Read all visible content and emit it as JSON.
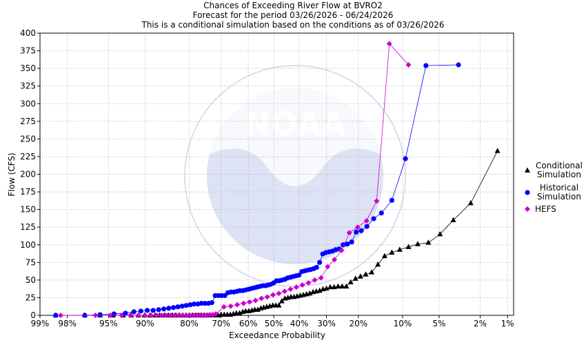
{
  "chart_data": {
    "type": "scatter",
    "title_lines": [
      "Chances of Exceeding River Flow at BVRO2",
      "Forecast for the period 03/26/2026 - 06/24/2026",
      "This is a conditional simulation based on the conditions as of 03/26/2026"
    ],
    "xlabel": "Exceedance Probability",
    "ylabel": "Flow (CFS)",
    "x_scale": "normal-probability, reversed",
    "ylim": [
      0,
      400
    ],
    "yticks": [
      0,
      25,
      50,
      75,
      100,
      125,
      150,
      175,
      200,
      225,
      250,
      275,
      300,
      325,
      350,
      375,
      400
    ],
    "xticks": [
      {
        "p": 99,
        "label": "99%"
      },
      {
        "p": 98,
        "label": "98%"
      },
      {
        "p": 95,
        "label": "95%"
      },
      {
        "p": 90,
        "label": "90%"
      },
      {
        "p": 80,
        "label": "80%"
      },
      {
        "p": 70,
        "label": "70%"
      },
      {
        "p": 60,
        "label": "60%"
      },
      {
        "p": 50,
        "label": "50%"
      },
      {
        "p": 40,
        "label": "40%"
      },
      {
        "p": 30,
        "label": "30%"
      },
      {
        "p": 20,
        "label": "20%"
      },
      {
        "p": 10,
        "label": "10%"
      },
      {
        "p": 5,
        "label": "5%"
      },
      {
        "p": 2,
        "label": "2%"
      },
      {
        "p": 1,
        "label": "1%"
      }
    ],
    "grid": true,
    "legend_position": "right",
    "watermark": "NOAA",
    "series": [
      {
        "name": "Conditional Simulation",
        "legend_lines": [
          "Conditional",
          "Simulation"
        ],
        "color": "#000000",
        "marker": "triangle",
        "points": [
          [
            98.5,
            0
          ],
          [
            97,
            0
          ],
          [
            95.8,
            0
          ],
          [
            94.5,
            0
          ],
          [
            93.3,
            0
          ],
          [
            92.2,
            0
          ],
          [
            91.1,
            0
          ],
          [
            90.1,
            0
          ],
          [
            89.1,
            0
          ],
          [
            88.1,
            0
          ],
          [
            87.2,
            0
          ],
          [
            86.2,
            0
          ],
          [
            85.3,
            0
          ],
          [
            84.4,
            0
          ],
          [
            83.5,
            0
          ],
          [
            82.6,
            0
          ],
          [
            81.7,
            0
          ],
          [
            80.9,
            0
          ],
          [
            80,
            0
          ],
          [
            79.1,
            0
          ],
          [
            78.2,
            0
          ],
          [
            77.3,
            0
          ],
          [
            76.4,
            0
          ],
          [
            75.5,
            0
          ],
          [
            74.6,
            0
          ],
          [
            73.7,
            0
          ],
          [
            72.8,
            0
          ],
          [
            71.9,
            0
          ],
          [
            71,
            0
          ],
          [
            70,
            1
          ],
          [
            68.9,
            1
          ],
          [
            67.8,
            1
          ],
          [
            66.7,
            1
          ],
          [
            65.6,
            2
          ],
          [
            64.5,
            3
          ],
          [
            63.3,
            3
          ],
          [
            62.1,
            5
          ],
          [
            61,
            6
          ],
          [
            59.8,
            6
          ],
          [
            58.6,
            7
          ],
          [
            57.5,
            8
          ],
          [
            56.3,
            8
          ],
          [
            55.1,
            10
          ],
          [
            54,
            11
          ],
          [
            52.8,
            12
          ],
          [
            51.6,
            13
          ],
          [
            50.4,
            14
          ],
          [
            49.2,
            14
          ],
          [
            48,
            14
          ],
          [
            46.8,
            20
          ],
          [
            45.6,
            24
          ],
          [
            44.4,
            25
          ],
          [
            43.2,
            26
          ],
          [
            42,
            26
          ],
          [
            40.8,
            27
          ],
          [
            39.6,
            28
          ],
          [
            38.4,
            29
          ],
          [
            37.2,
            30
          ],
          [
            36,
            31
          ],
          [
            34.8,
            33
          ],
          [
            33.6,
            34
          ],
          [
            32.4,
            35
          ],
          [
            31.2,
            37
          ],
          [
            30,
            38
          ],
          [
            28.7,
            40
          ],
          [
            27.4,
            40
          ],
          [
            26.1,
            41
          ],
          [
            24.8,
            41
          ],
          [
            23.5,
            41
          ],
          [
            22.2,
            47
          ],
          [
            20.8,
            52
          ],
          [
            19.4,
            55
          ],
          [
            18,
            58
          ],
          [
            16.5,
            61
          ],
          [
            15,
            72
          ],
          [
            13.5,
            84
          ],
          [
            12,
            89
          ],
          [
            10.5,
            93
          ],
          [
            9,
            97
          ],
          [
            7.6,
            101
          ],
          [
            6.2,
            103
          ],
          [
            4.9,
            115
          ],
          [
            3.7,
            135
          ],
          [
            2.5,
            159
          ],
          [
            1.3,
            233
          ]
        ]
      },
      {
        "name": "Historical Simulation",
        "legend_lines": [
          "Historical",
          "Simulation"
        ],
        "color": "#0000ff",
        "marker": "circle",
        "points": [
          [
            98.5,
            0
          ],
          [
            97,
            0
          ],
          [
            95.8,
            1
          ],
          [
            94.4,
            2
          ],
          [
            93,
            3
          ],
          [
            91.8,
            5
          ],
          [
            90.7,
            6
          ],
          [
            89.6,
            7
          ],
          [
            88.5,
            7
          ],
          [
            87.4,
            8
          ],
          [
            86.3,
            9
          ],
          [
            85.2,
            10
          ],
          [
            84.1,
            11
          ],
          [
            83,
            12
          ],
          [
            81.9,
            13
          ],
          [
            80.8,
            14
          ],
          [
            79.7,
            15
          ],
          [
            78.6,
            16
          ],
          [
            77.5,
            16
          ],
          [
            76.4,
            17
          ],
          [
            75.3,
            17
          ],
          [
            74.2,
            17
          ],
          [
            73.1,
            18
          ],
          [
            72,
            28
          ],
          [
            70.9,
            28
          ],
          [
            69.8,
            28
          ],
          [
            68.7,
            28
          ],
          [
            67.6,
            32
          ],
          [
            66.5,
            33
          ],
          [
            65.4,
            33
          ],
          [
            64.3,
            34
          ],
          [
            63.2,
            35
          ],
          [
            62.1,
            35
          ],
          [
            61,
            36
          ],
          [
            59.9,
            37
          ],
          [
            58.8,
            38
          ],
          [
            57.7,
            39
          ],
          [
            56.6,
            40
          ],
          [
            55.5,
            41
          ],
          [
            54.4,
            42
          ],
          [
            53.3,
            42
          ],
          [
            52.2,
            43
          ],
          [
            51.1,
            44
          ],
          [
            50,
            46
          ],
          [
            48.9,
            49
          ],
          [
            47.8,
            49
          ],
          [
            46.7,
            50
          ],
          [
            45.6,
            51
          ],
          [
            44.5,
            53
          ],
          [
            43.4,
            54
          ],
          [
            42.3,
            55
          ],
          [
            41.2,
            56
          ],
          [
            40.1,
            57
          ],
          [
            39,
            62
          ],
          [
            37.9,
            63
          ],
          [
            36.8,
            64
          ],
          [
            35.7,
            65
          ],
          [
            34.6,
            66
          ],
          [
            33.5,
            68
          ],
          [
            32.4,
            75
          ],
          [
            31.3,
            87
          ],
          [
            30.2,
            89
          ],
          [
            29.1,
            90
          ],
          [
            28,
            91
          ],
          [
            26.9,
            93
          ],
          [
            25.8,
            94
          ],
          [
            24.5,
            100
          ],
          [
            23.2,
            101
          ],
          [
            21.9,
            104
          ],
          [
            20.6,
            118
          ],
          [
            19.2,
            120
          ],
          [
            17.7,
            126
          ],
          [
            16,
            137
          ],
          [
            14.2,
            145
          ],
          [
            12,
            163
          ],
          [
            9.5,
            222
          ],
          [
            6.5,
            354
          ],
          [
            3.3,
            355
          ]
        ]
      },
      {
        "name": "HEFS",
        "legend_lines": [
          "HEFS"
        ],
        "color": "#cc00cc",
        "marker": "diamond",
        "points": [
          [
            98.3,
            0
          ],
          [
            96.2,
            0
          ],
          [
            94.8,
            0
          ],
          [
            93.5,
            0
          ],
          [
            92.3,
            0
          ],
          [
            91.1,
            0
          ],
          [
            90,
            0
          ],
          [
            88.9,
            0
          ],
          [
            87.8,
            0
          ],
          [
            86.8,
            0
          ],
          [
            85.8,
            0
          ],
          [
            84.8,
            0
          ],
          [
            83.8,
            0
          ],
          [
            82.8,
            0
          ],
          [
            81.8,
            0
          ],
          [
            80.8,
            0
          ],
          [
            79.8,
            0
          ],
          [
            78.8,
            0
          ],
          [
            77.8,
            0
          ],
          [
            76.8,
            0
          ],
          [
            75.8,
            0
          ],
          [
            74.8,
            0
          ],
          [
            73.8,
            1
          ],
          [
            72.8,
            1
          ],
          [
            71.8,
            2
          ],
          [
            69,
            12
          ],
          [
            66.6,
            13
          ],
          [
            64.2,
            15
          ],
          [
            61.8,
            17
          ],
          [
            59.5,
            19
          ],
          [
            57.2,
            21
          ],
          [
            54.9,
            24
          ],
          [
            52.6,
            26
          ],
          [
            50.3,
            29
          ],
          [
            48,
            31
          ],
          [
            45.7,
            34
          ],
          [
            43.4,
            37
          ],
          [
            41.1,
            40
          ],
          [
            38.8,
            43
          ],
          [
            36.5,
            46
          ],
          [
            34.2,
            50
          ],
          [
            31.9,
            53
          ],
          [
            29.6,
            69
          ],
          [
            27.3,
            79
          ],
          [
            25,
            92
          ],
          [
            22.6,
            117
          ],
          [
            20.2,
            125
          ],
          [
            17.8,
            134
          ],
          [
            15.3,
            162
          ],
          [
            12.5,
            385
          ],
          [
            9,
            355
          ]
        ]
      }
    ]
  }
}
